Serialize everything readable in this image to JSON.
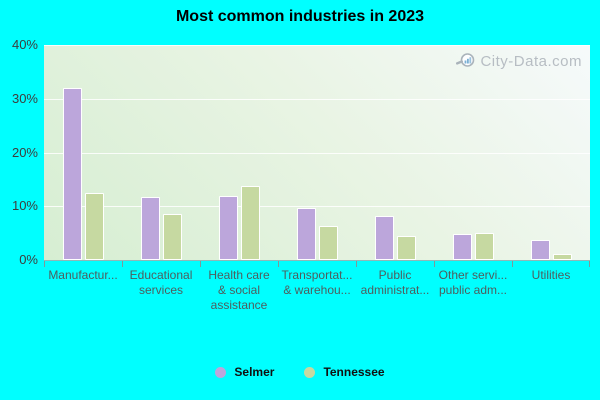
{
  "title": "Most common industries in 2023",
  "watermark": "City-Data.com",
  "chart_data": {
    "type": "bar",
    "title": "Most common industries in 2023",
    "categories": [
      "Manufactur...",
      "Educational\nservices",
      "Health care\n& social\nassistance",
      "Transportat...\n& warehou...",
      "Public\nadministrat...",
      "Other servi...\npublic adm...",
      "Utilities"
    ],
    "series": [
      {
        "name": "Selmer",
        "color": "#bca6db",
        "values": [
          32.0,
          11.8,
          11.9,
          9.7,
          8.2,
          4.9,
          3.7
        ]
      },
      {
        "name": "Tennessee",
        "color": "#c6d9a1",
        "values": [
          12.4,
          8.5,
          13.8,
          6.4,
          4.4,
          5.0,
          1.1
        ]
      }
    ],
    "xlabel": "",
    "ylabel": "",
    "ylim": [
      0,
      40
    ],
    "yticks": [
      0,
      10,
      20,
      30,
      40
    ],
    "ytick_suffix": "%",
    "grid": true,
    "legend_position": "bottom"
  },
  "colors": {
    "background": "#00ffff",
    "plot_top": "#f6fafb",
    "plot_bottom": "#d6eed2",
    "gridline": "rgba(255,255,255,0.85)",
    "tick": "#7d9a9a",
    "x_label_text": "#4e5e5e",
    "y_label_text": "#3d3d3d",
    "title_text": "#000000",
    "watermark_text": "#b7bdc3"
  }
}
